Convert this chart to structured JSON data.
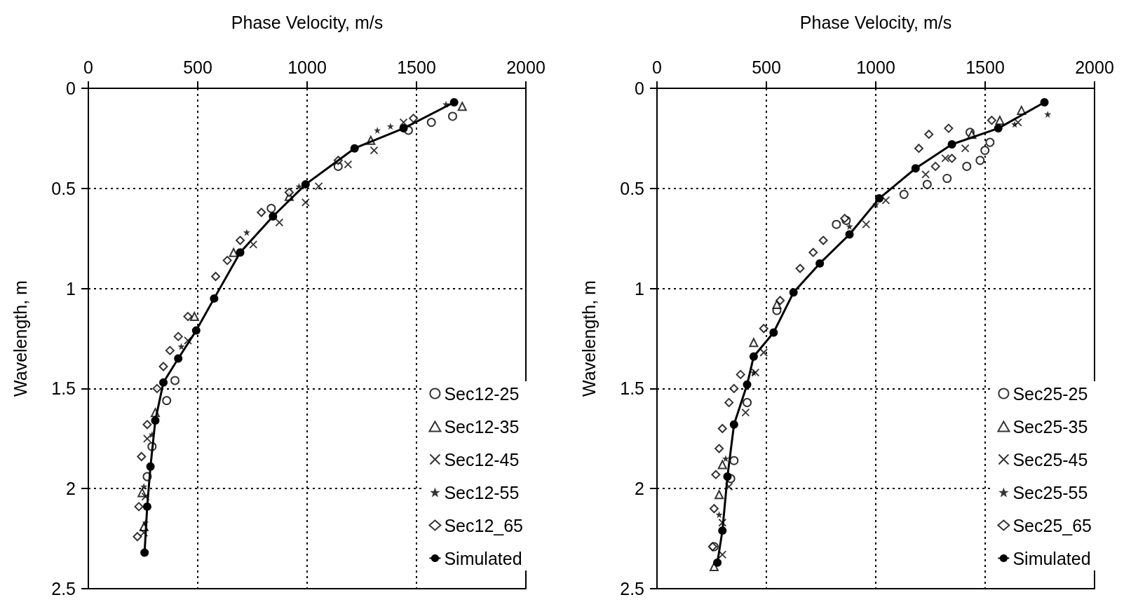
{
  "chart_data": [
    {
      "type": "scatter",
      "xlabel": "Phase Velocity, m/s",
      "ylabel": "Wavelength, m",
      "xlim": [
        0,
        2000
      ],
      "xticks": [
        0,
        500,
        1000,
        1500,
        2000
      ],
      "ylim": [
        2.5,
        0
      ],
      "yticks": [
        0,
        0.5,
        1,
        1.5,
        2,
        2.5
      ],
      "grid": true,
      "legend": "bottom right",
      "series": [
        {
          "name": "Sec12-25",
          "color": "#000000",
          "marker": "circle",
          "x": [
            358,
            396,
            291,
            269,
            836,
            1142,
            1463,
            1568,
            1665
          ],
          "values": [
            1.56,
            1.46,
            1.79,
            1.94,
            0.6,
            0.39,
            0.21,
            0.17,
            0.14
          ]
        },
        {
          "name": "Sec12-35",
          "color": "#000000",
          "marker": "triangle",
          "x": [
            1709,
            1291,
            918,
            664,
            485,
            306,
            254,
            246
          ],
          "values": [
            0.09,
            0.26,
            0.54,
            0.82,
            1.14,
            1.62,
            2.19,
            2.02
          ]
        },
        {
          "name": "Sec12-45",
          "color": "#000000",
          "marker": "cross",
          "x": [
            254,
            261,
            269,
            455,
            754,
            873,
            993,
            1053,
            1187,
            1306,
            1441
          ],
          "values": [
            2.22,
            2.04,
            1.75,
            1.26,
            0.78,
            0.67,
            0.57,
            0.49,
            0.38,
            0.31,
            0.17
          ]
        },
        {
          "name": "Sec12-55",
          "color": "#000000",
          "marker": "star",
          "x": [
            261,
            254,
            291,
            425,
            724,
            963,
            1321,
            1381,
            1635
          ],
          "values": [
            2.17,
            1.99,
            1.73,
            1.29,
            0.72,
            0.49,
            0.21,
            0.19,
            0.08
          ]
        },
        {
          "name": "Sec12_65",
          "color": "#000000",
          "marker": "diamond",
          "x": [
            224,
            231,
            243,
            269,
            314,
            343,
            373,
            411,
            455,
            582,
            635,
            694,
            791,
            918,
            1142,
            1486
          ],
          "values": [
            2.24,
            2.09,
            1.84,
            1.68,
            1.5,
            1.39,
            1.31,
            1.24,
            1.14,
            0.94,
            0.86,
            0.76,
            0.62,
            0.52,
            0.36,
            0.15
          ]
        },
        {
          "name": "Simulated",
          "type": "line",
          "color": "#000000",
          "marker": "circle",
          "x": [
            257,
            269,
            284,
            306,
            343,
            411,
            493,
            575,
            694,
            844,
            993,
            1217,
            1441,
            1672
          ],
          "values": [
            2.32,
            2.09,
            1.89,
            1.66,
            1.47,
            1.35,
            1.21,
            1.05,
            0.82,
            0.64,
            0.48,
            0.3,
            0.2,
            0.07
          ]
        }
      ]
    },
    {
      "type": "scatter",
      "xlabel": "Phase Velocity, m/s",
      "ylabel": "Wavelength, m",
      "xlim": [
        0,
        2000
      ],
      "xticks": [
        0,
        500,
        1000,
        1500,
        2000
      ],
      "ylim": [
        2.5,
        0
      ],
      "yticks": [
        0,
        0.5,
        1,
        1.5,
        2,
        2.5
      ],
      "grid": true,
      "legend": "bottom right",
      "series": [
        {
          "name": "Sec25-25",
          "color": "#000000",
          "marker": "circle",
          "x": [
            261,
            337,
            352,
            412,
            548,
            820,
            865,
            1129,
            1235,
            1326,
            1416,
            1477,
            1499,
            1522,
            1431
          ],
          "values": [
            2.29,
            1.95,
            1.86,
            1.57,
            1.11,
            0.68,
            0.66,
            0.53,
            0.48,
            0.45,
            0.39,
            0.36,
            0.31,
            0.27,
            0.22
          ]
        },
        {
          "name": "Sec25-35",
          "color": "#000000",
          "marker": "triangle",
          "x": [
            261,
            284,
            299,
            442,
            548,
            1439,
            1567,
            1666
          ],
          "values": [
            2.39,
            2.03,
            1.88,
            1.27,
            1.08,
            0.23,
            0.16,
            0.11
          ]
        },
        {
          "name": "Sec25-45",
          "color": "#000000",
          "marker": "cross",
          "x": [
            299,
            299,
            329,
            405,
            450,
            488,
            956,
            1046,
            1228,
            1318,
            1409,
            1650
          ],
          "values": [
            2.33,
            2.17,
            1.99,
            1.62,
            1.42,
            1.32,
            0.68,
            0.56,
            0.43,
            0.35,
            0.3,
            0.17
          ]
        },
        {
          "name": "Sec25-55",
          "color": "#000000",
          "marker": "star",
          "x": [
            284,
            314,
            442,
            880,
            1001,
            1786,
            1635
          ],
          "values": [
            2.13,
            1.85,
            1.42,
            0.69,
            0.58,
            0.13,
            0.18
          ]
        },
        {
          "name": "Sec25_65",
          "color": "#000000",
          "marker": "diamond",
          "x": [
            254,
            261,
            269,
            284,
            299,
            329,
            352,
            382,
            488,
            563,
            654,
            714,
            760,
            858,
            1197,
            1243,
            1333,
            1273,
            1348,
            1530
          ],
          "values": [
            2.29,
            2.1,
            1.93,
            1.8,
            1.7,
            1.57,
            1.5,
            1.43,
            1.2,
            1.06,
            0.9,
            0.82,
            0.76,
            0.65,
            0.3,
            0.23,
            0.2,
            0.39,
            0.35,
            0.16
          ]
        },
        {
          "name": "Simulated",
          "type": "line",
          "color": "#000000",
          "marker": "circle",
          "x": [
            276,
            299,
            322,
            352,
            412,
            442,
            533,
            624,
            744,
            880,
            1016,
            1182,
            1348,
            1560,
            1771
          ],
          "values": [
            2.37,
            2.21,
            1.94,
            1.68,
            1.48,
            1.34,
            1.22,
            1.02,
            0.875,
            0.73,
            0.55,
            0.4,
            0.28,
            0.2,
            0.07
          ]
        }
      ]
    }
  ]
}
